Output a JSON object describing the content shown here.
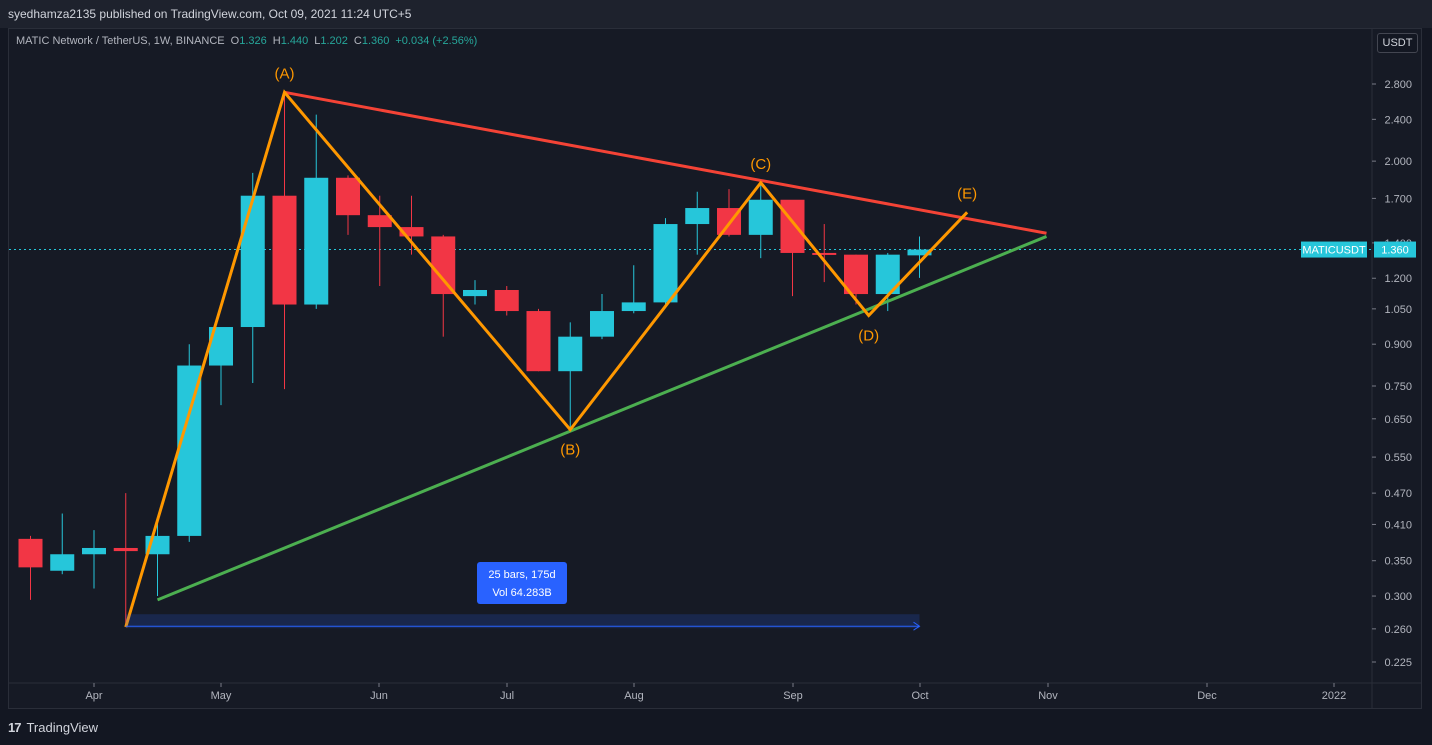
{
  "publish_line": "syedhamza2135 published on TradingView.com, Oct 09, 2021 11:24 UTC+5",
  "symbol": {
    "name": "MATIC Network / TetherUS, 1W, BINANCE",
    "open_label": "O",
    "open": "1.326",
    "high_label": "H",
    "high": "1.440",
    "low_label": "L",
    "low": "1.202",
    "close_label": "C",
    "close": "1.360",
    "change": "+0.034 (+2.56%)"
  },
  "currency": "USDT",
  "footer": {
    "logo_mark": "17",
    "brand": "TradingView"
  },
  "colors": {
    "up": "#26c6da",
    "down": "#f23645",
    "wave": "#ff9800",
    "resistance": "#f44336",
    "support": "#4caf50",
    "measure": "#2962ff",
    "price_line": "#26c6da"
  },
  "chart_data": {
    "type": "candlestick",
    "timeframe": "1W",
    "scale": "log",
    "ylim": [
      0.21,
      3.25
    ],
    "y_ticks": [
      "2.800",
      "2.400",
      "2.000",
      "1.700",
      "1.400",
      "1.200",
      "1.050",
      "0.900",
      "0.750",
      "0.650",
      "0.550",
      "0.470",
      "0.410",
      "0.350",
      "0.300",
      "0.260",
      "0.225"
    ],
    "x_ticks": [
      "Apr",
      "May",
      "Jun",
      "Jul",
      "Aug",
      "Sep",
      "Oct",
      "Nov",
      "Dec",
      "2022"
    ],
    "candles": [
      {
        "o": 0.385,
        "h": 0.39,
        "l": 0.295,
        "c": 0.34
      },
      {
        "o": 0.335,
        "h": 0.43,
        "l": 0.33,
        "c": 0.36
      },
      {
        "o": 0.36,
        "h": 0.4,
        "l": 0.31,
        "c": 0.37
      },
      {
        "o": 0.37,
        "h": 0.47,
        "l": 0.263,
        "c": 0.365
      },
      {
        "o": 0.36,
        "h": 0.42,
        "l": 0.3,
        "c": 0.39
      },
      {
        "o": 0.39,
        "h": 0.9,
        "l": 0.38,
        "c": 0.82
      },
      {
        "o": 0.82,
        "h": 0.96,
        "l": 0.69,
        "c": 0.97
      },
      {
        "o": 0.97,
        "h": 1.9,
        "l": 0.76,
        "c": 1.72
      },
      {
        "o": 1.72,
        "h": 2.7,
        "l": 0.74,
        "c": 1.07
      },
      {
        "o": 1.07,
        "h": 2.45,
        "l": 1.05,
        "c": 1.86
      },
      {
        "o": 1.86,
        "h": 1.88,
        "l": 1.45,
        "c": 1.58
      },
      {
        "o": 1.58,
        "h": 1.72,
        "l": 1.16,
        "c": 1.5
      },
      {
        "o": 1.5,
        "h": 1.72,
        "l": 1.33,
        "c": 1.44
      },
      {
        "o": 1.44,
        "h": 1.45,
        "l": 0.93,
        "c": 1.12
      },
      {
        "o": 1.11,
        "h": 1.19,
        "l": 1.07,
        "c": 1.14
      },
      {
        "o": 1.14,
        "h": 1.16,
        "l": 1.02,
        "c": 1.04
      },
      {
        "o": 1.04,
        "h": 1.05,
        "l": 0.8,
        "c": 0.8
      },
      {
        "o": 0.8,
        "h": 0.99,
        "l": 0.62,
        "c": 0.93
      },
      {
        "o": 0.93,
        "h": 1.12,
        "l": 0.92,
        "c": 1.04
      },
      {
        "o": 1.04,
        "h": 1.27,
        "l": 1.03,
        "c": 1.08
      },
      {
        "o": 1.08,
        "h": 1.56,
        "l": 1.06,
        "c": 1.52
      },
      {
        "o": 1.52,
        "h": 1.75,
        "l": 1.33,
        "c": 1.63
      },
      {
        "o": 1.63,
        "h": 1.77,
        "l": 1.44,
        "c": 1.45
      },
      {
        "o": 1.45,
        "h": 1.82,
        "l": 1.31,
        "c": 1.69
      },
      {
        "o": 1.69,
        "h": 1.68,
        "l": 1.11,
        "c": 1.34
      },
      {
        "o": 1.34,
        "h": 1.52,
        "l": 1.18,
        "c": 1.33
      },
      {
        "o": 1.33,
        "h": 1.33,
        "l": 1.07,
        "c": 1.12
      },
      {
        "o": 1.12,
        "h": 1.34,
        "l": 1.04,
        "c": 1.33
      },
      {
        "o": 1.326,
        "h": 1.44,
        "l": 1.202,
        "c": 1.36
      }
    ],
    "last_price": {
      "symbol": "MATICUSDT",
      "value": "1.360",
      "hidden_label": "1.400"
    },
    "annotations": {
      "wave_points": [
        {
          "label": "(A)",
          "bar": 8,
          "price": 2.7,
          "label_pos": "above"
        },
        {
          "label": "(B)",
          "bar": 17,
          "price": 0.62,
          "label_pos": "below"
        },
        {
          "label": "(C)",
          "bar": 23,
          "price": 1.82,
          "label_pos": "above"
        },
        {
          "label": "(D)",
          "bar": 26.4,
          "price": 1.02,
          "label_pos": "below"
        },
        {
          "label": "(E)",
          "bar": 29.5,
          "price": 1.6,
          "label_pos": "above"
        }
      ],
      "wave_start": {
        "bar": 3,
        "price": 0.262
      },
      "resistance": [
        {
          "bar": 8,
          "price": 2.7
        },
        {
          "bar": 32,
          "price": 1.46
        }
      ],
      "support": [
        {
          "bar": 4,
          "price": 0.295
        },
        {
          "bar": 32,
          "price": 1.44
        }
      ],
      "measure": {
        "from_bar": 3,
        "to_bar": 28,
        "price": 0.263,
        "line1": "25 bars, 175d",
        "line2": "Vol 64.283B"
      }
    }
  }
}
